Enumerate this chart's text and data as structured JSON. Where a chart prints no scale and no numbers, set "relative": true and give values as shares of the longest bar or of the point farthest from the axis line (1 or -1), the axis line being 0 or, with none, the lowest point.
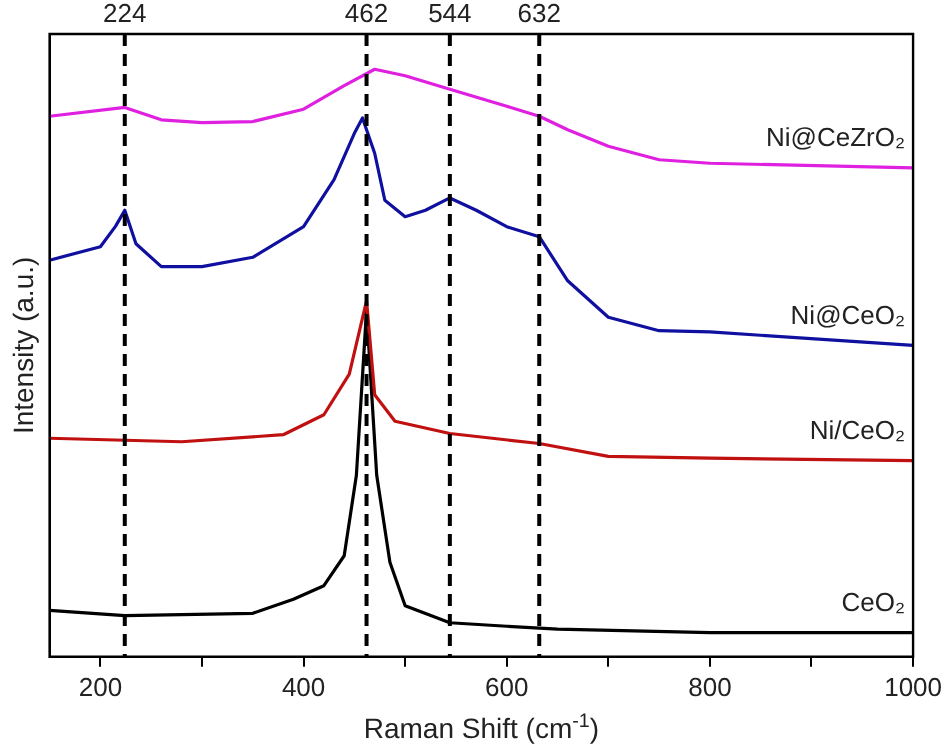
{
  "chart_data": {
    "type": "line",
    "relative": true,
    "xlabel": "Raman Shift (cm$^{-1}$)",
    "ylabel": "Intensity (a.u.)",
    "xlim": [
      150,
      1000
    ],
    "xticks": [
      200,
      {
        "value": 300,
        "label": null
      },
      400,
      {
        "value": 500,
        "label": null
      },
      600,
      {
        "value": 700,
        "label": null
      },
      800,
      {
        "value": 900,
        "label": null
      },
      1000
    ],
    "tick_labels": "x",
    "grid": false,
    "legend": false,
    "marker": "none",
    "series": [
      {
        "name": "Ni@CeZrO₂",
        "color": "#e020e0",
        "x": [
          150,
          224,
          260,
          300,
          350,
          400,
          440,
          470,
          500,
          544,
          600,
          632,
          660,
          700,
          750,
          800,
          1000
        ],
        "values": [
          0.92,
          0.935,
          0.914,
          0.909,
          0.911,
          0.932,
          0.972,
          1.0,
          0.989,
          0.966,
          0.937,
          0.92,
          0.897,
          0.869,
          0.846,
          0.84,
          0.832
        ]
      },
      {
        "name": "Ni@CeO₂",
        "color": "#1010a0",
        "x": [
          150,
          200,
          215,
          224,
          235,
          260,
          300,
          350,
          400,
          430,
          450,
          458,
          470,
          480,
          500,
          520,
          544,
          570,
          600,
          632,
          660,
          700,
          750,
          800,
          1000
        ],
        "values": [
          0.675,
          0.698,
          0.733,
          0.76,
          0.703,
          0.664,
          0.664,
          0.68,
          0.732,
          0.812,
          0.891,
          0.917,
          0.857,
          0.777,
          0.749,
          0.76,
          0.781,
          0.76,
          0.732,
          0.715,
          0.64,
          0.578,
          0.555,
          0.553,
          0.53
        ]
      },
      {
        "name": "Ni/CeO₂",
        "color": "#c01010",
        "x": [
          150,
          280,
          380,
          420,
          445,
          462,
          470,
          490,
          544,
          632,
          700,
          800,
          1000
        ],
        "values": [
          0.372,
          0.366,
          0.378,
          0.412,
          0.481,
          0.606,
          0.446,
          0.401,
          0.38,
          0.363,
          0.341,
          0.338,
          0.334
        ]
      },
      {
        "name": "CeO₂",
        "color": "#000000",
        "x": [
          150,
          224,
          350,
          390,
          420,
          440,
          452,
          462,
          472,
          485,
          500,
          544,
          600,
          650,
          800,
          1000
        ],
        "values": [
          0.079,
          0.07,
          0.074,
          0.098,
          0.121,
          0.172,
          0.309,
          0.59,
          0.309,
          0.161,
          0.087,
          0.058,
          0.052,
          0.047,
          0.041,
          0.041
        ]
      }
    ],
    "ref_lines": [
      {
        "axis": "x",
        "value": 224,
        "label": "224",
        "color": "#000000",
        "line_style": "dashed"
      },
      {
        "axis": "x",
        "value": 462,
        "label": "462",
        "color": "#000000",
        "line_style": "dashed"
      },
      {
        "axis": "x",
        "value": 544,
        "label": "544",
        "color": "#000000",
        "line_style": "dashed"
      },
      {
        "axis": "x",
        "value": 632,
        "label": "632",
        "color": "#000000",
        "line_style": "dashed"
      }
    ]
  }
}
